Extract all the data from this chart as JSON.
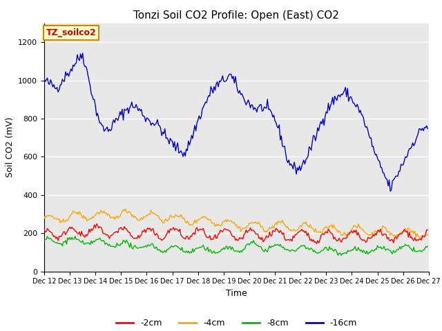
{
  "title": "Tonzi Soil CO2 Profile: Open (East) CO2",
  "xlabel": "Time",
  "ylabel": "Soil CO2 (mV)",
  "ylim": [
    0,
    1300
  ],
  "plot_bg_color": "#e8e8e8",
  "yticks": [
    0,
    200,
    400,
    600,
    800,
    1000,
    1200
  ],
  "xtick_labels": [
    "Dec 12",
    "Dec 13",
    "Dec 14",
    "Dec 15",
    "Dec 16",
    "Dec 17",
    "Dec 18",
    "Dec 19",
    "Dec 20",
    "Dec 21",
    "Dec 22",
    "Dec 23",
    "Dec 24",
    "Dec 25",
    "Dec 26",
    "Dec 27"
  ],
  "legend_labels": [
    "-2cm",
    "-4cm",
    "-8cm",
    "-16cm"
  ],
  "legend_colors": [
    "#ff0000",
    "#ffa500",
    "#00bb00",
    "#0000cc"
  ],
  "label_box_text": "TZ_soilco2",
  "label_box_facecolor": "#ffffcc",
  "label_box_edgecolor": "#cc8800",
  "title_fontsize": 11,
  "axis_fontsize": 9,
  "tick_fontsize": 8
}
